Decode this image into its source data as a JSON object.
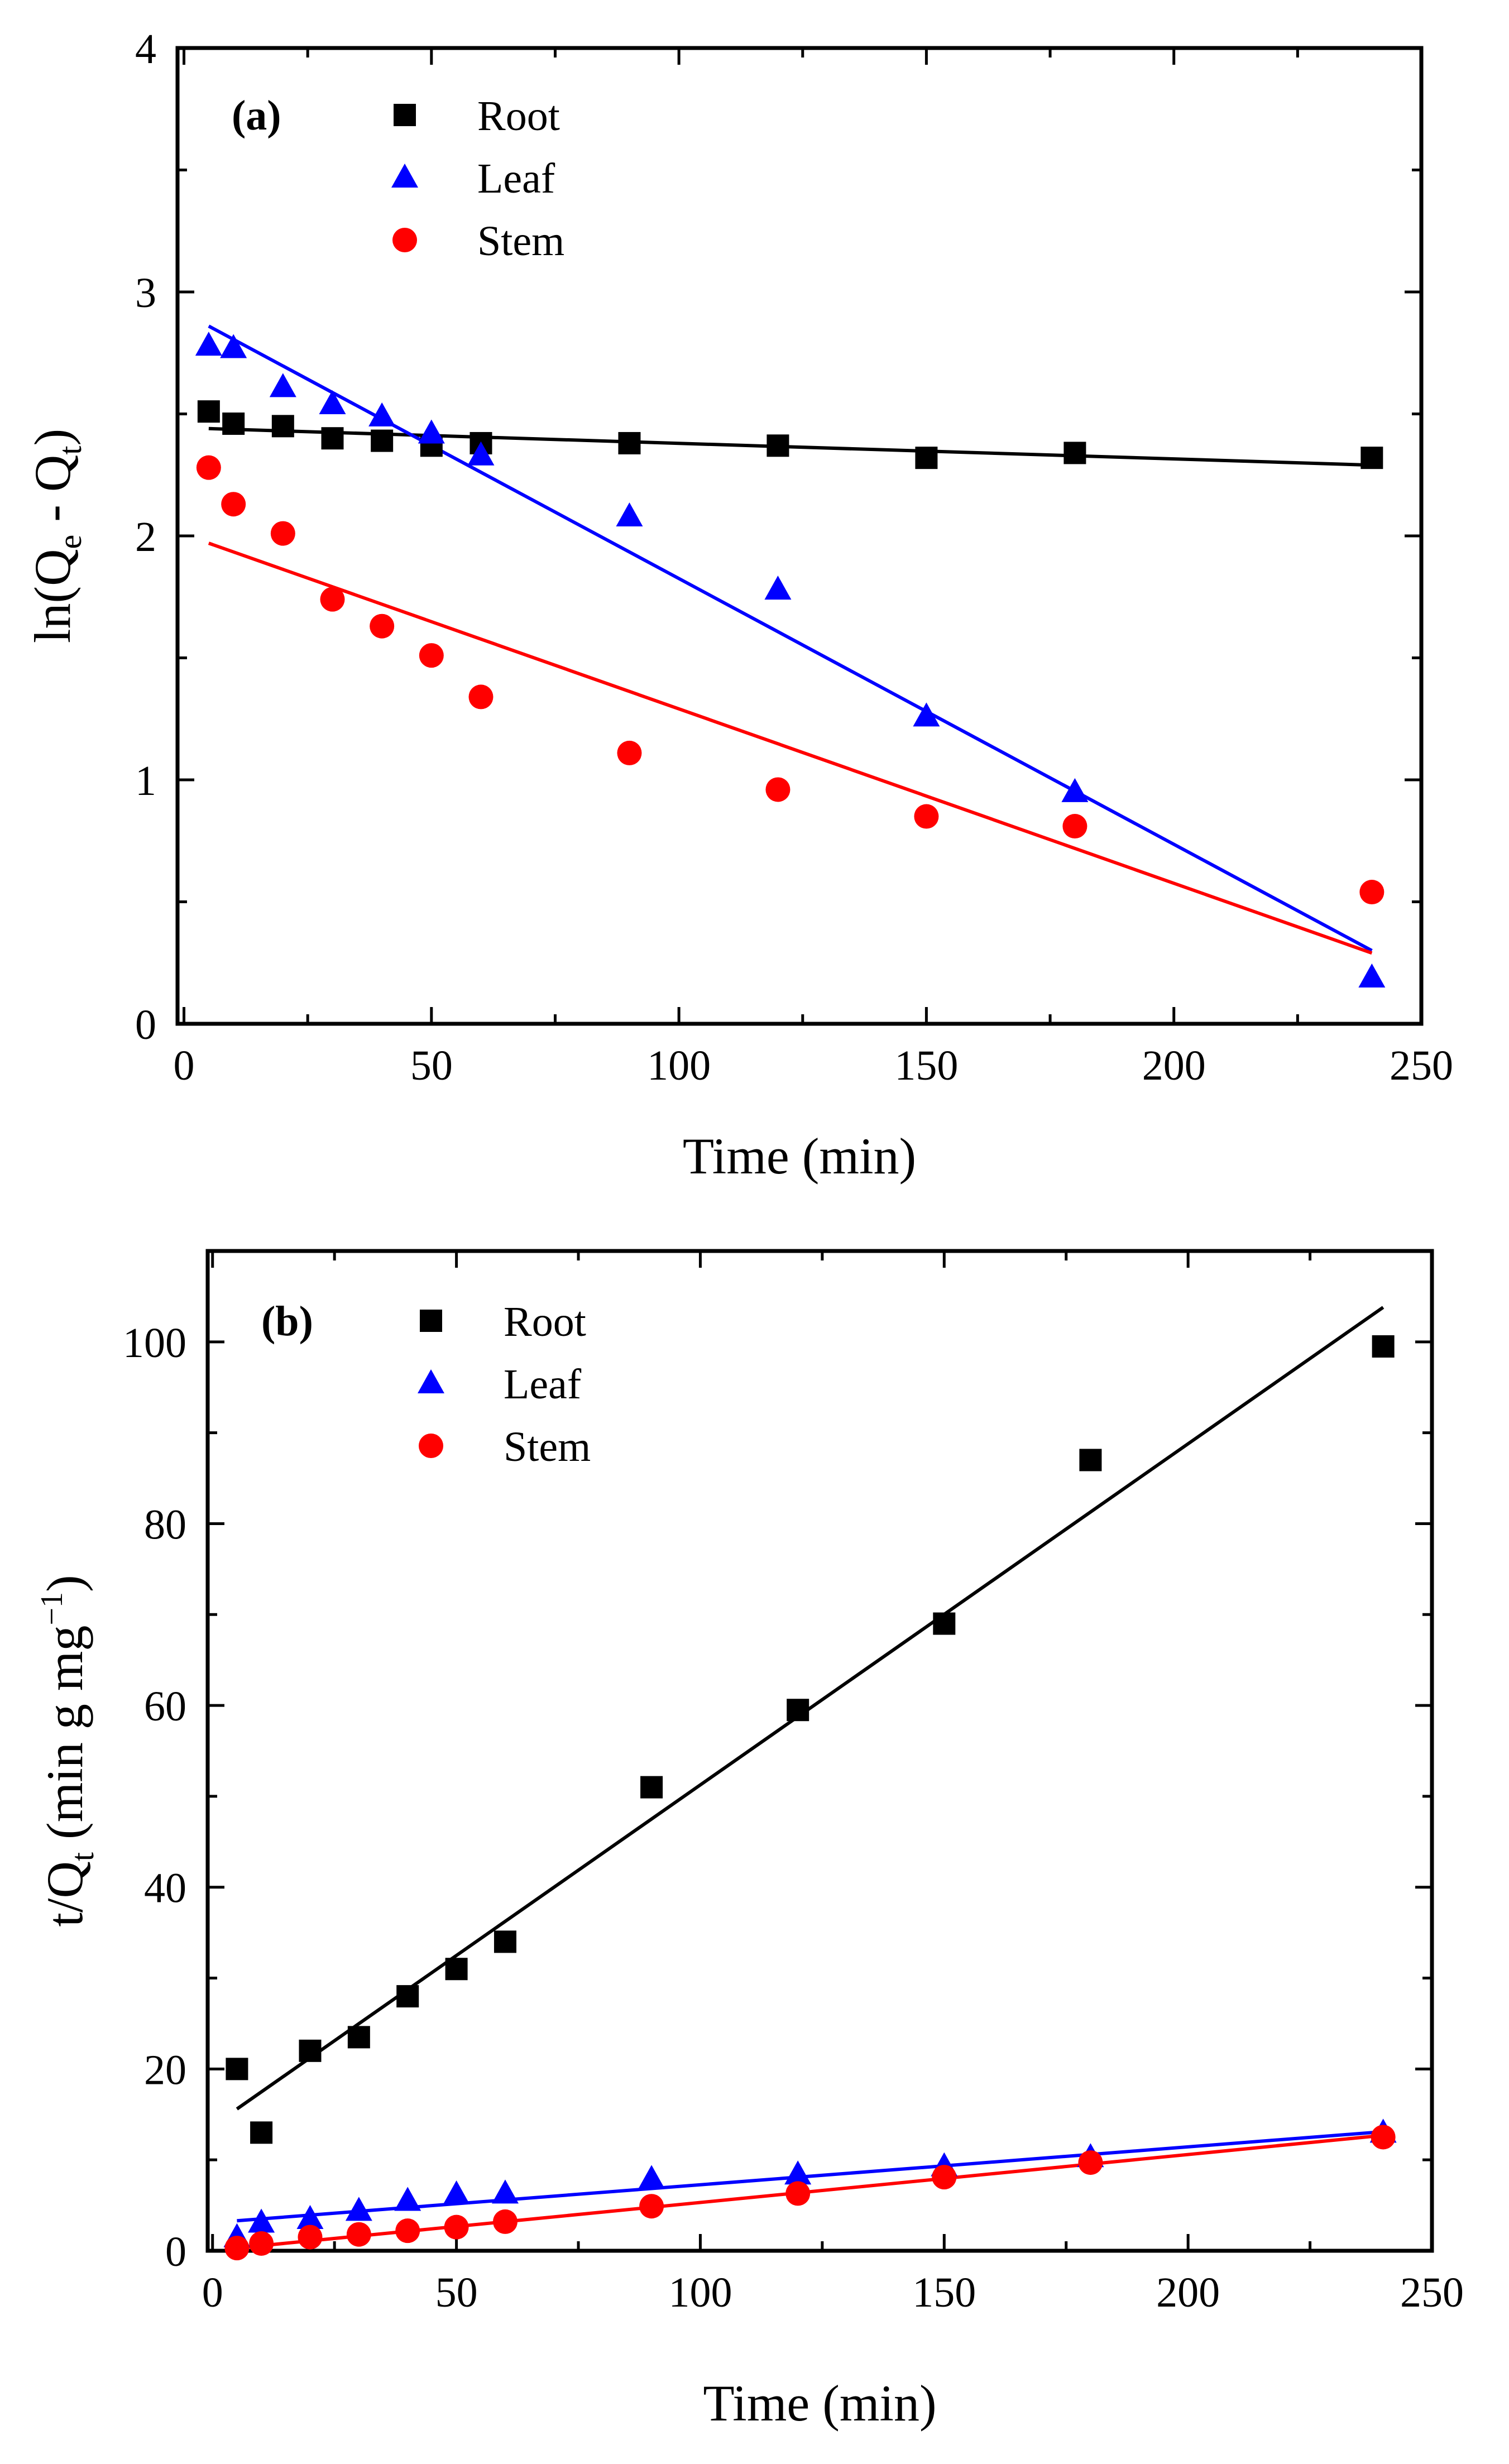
{
  "colors": {
    "root": "#000000",
    "leaf": "#0000ff",
    "stem": "#ff0000"
  },
  "chart_data": [
    {
      "type": "scatter",
      "panel_label": "(a)",
      "xlabel": "Time (min)",
      "ylabel": {
        "prefix": "ln(Q",
        "sub1": "e",
        "middle": " - Q",
        "sub2": "t",
        "suffix": ")"
      },
      "xlim": [
        0,
        250
      ],
      "ylim": [
        0,
        4
      ],
      "xticks": [
        0,
        50,
        100,
        150,
        200,
        250
      ],
      "yticks": [
        0,
        1,
        2,
        3,
        4
      ],
      "legend_placement": "top-left",
      "grid": false,
      "series": [
        {
          "name": "Root",
          "marker": "square",
          "color": "#000000",
          "x": [
            5,
            10,
            20,
            30,
            40,
            50,
            60,
            90,
            120,
            150,
            180,
            240
          ],
          "y": [
            2.51,
            2.46,
            2.45,
            2.4,
            2.39,
            2.37,
            2.38,
            2.38,
            2.37,
            2.32,
            2.34,
            2.32
          ],
          "fit": {
            "x": [
              5,
              240
            ],
            "y": [
              2.44,
              2.29
            ]
          }
        },
        {
          "name": "Leaf",
          "marker": "triangle",
          "color": "#0000ff",
          "x": [
            5,
            10,
            20,
            30,
            40,
            50,
            60,
            90,
            120,
            150,
            180,
            240
          ],
          "y": [
            2.78,
            2.77,
            2.61,
            2.54,
            2.49,
            2.42,
            2.33,
            2.08,
            1.78,
            1.26,
            0.95,
            0.19
          ],
          "fit": {
            "x": [
              5,
              240
            ],
            "y": [
              2.86,
              0.3
            ]
          }
        },
        {
          "name": "Stem",
          "marker": "circle",
          "color": "#ff0000",
          "x": [
            5,
            10,
            20,
            30,
            40,
            50,
            60,
            90,
            120,
            150,
            180,
            240
          ],
          "y": [
            2.28,
            2.13,
            2.01,
            1.74,
            1.63,
            1.51,
            1.34,
            1.11,
            0.96,
            0.85,
            0.81,
            0.54
          ],
          "fit": {
            "x": [
              5,
              240
            ],
            "y": [
              1.97,
              0.29
            ]
          }
        }
      ]
    },
    {
      "type": "scatter",
      "panel_label": "(b)",
      "xlabel": "Time (min)",
      "ylabel": {
        "prefix": "t/Q",
        "sub1": "t",
        "middle": " (min g mg",
        "sup": "−1",
        "suffix": ")"
      },
      "xlim": [
        0,
        250
      ],
      "ylim": [
        0,
        110
      ],
      "xticks": [
        0,
        50,
        100,
        150,
        200,
        250
      ],
      "yticks": [
        0,
        20,
        40,
        60,
        80,
        100
      ],
      "legend_placement": "top-left",
      "grid": false,
      "series": [
        {
          "name": "Root",
          "marker": "square",
          "color": "#000000",
          "x": [
            5,
            10,
            20,
            30,
            40,
            50,
            60,
            90,
            120,
            150,
            180,
            240
          ],
          "y": [
            20,
            13,
            22,
            23.5,
            28,
            31,
            34,
            51,
            59.5,
            69,
            87,
            99.5
          ],
          "fit": {
            "x": [
              5,
              240
            ],
            "y": [
              15.6,
              103.8
            ]
          }
        },
        {
          "name": "Leaf",
          "marker": "triangle",
          "color": "#0000ff",
          "x": [
            5,
            10,
            20,
            30,
            40,
            50,
            60,
            90,
            120,
            150,
            180,
            240
          ],
          "y": [
            1.5,
            3.1,
            3.5,
            4.4,
            5.5,
            6.2,
            6.3,
            7.9,
            8.4,
            9.3,
            10.3,
            13
          ],
          "fit": {
            "x": [
              5,
              240
            ],
            "y": [
              3.3,
              13.1
            ]
          }
        },
        {
          "name": "Stem",
          "marker": "circle",
          "color": "#ff0000",
          "x": [
            5,
            10,
            20,
            30,
            40,
            50,
            60,
            90,
            120,
            150,
            180,
            240
          ],
          "y": [
            0.3,
            0.8,
            1.5,
            1.8,
            2.2,
            2.6,
            3.2,
            4.9,
            6.3,
            8.1,
            9.7,
            12.5
          ],
          "fit": {
            "x": [
              5,
              240
            ],
            "y": [
              0.3,
              12.7
            ]
          }
        }
      ]
    }
  ]
}
